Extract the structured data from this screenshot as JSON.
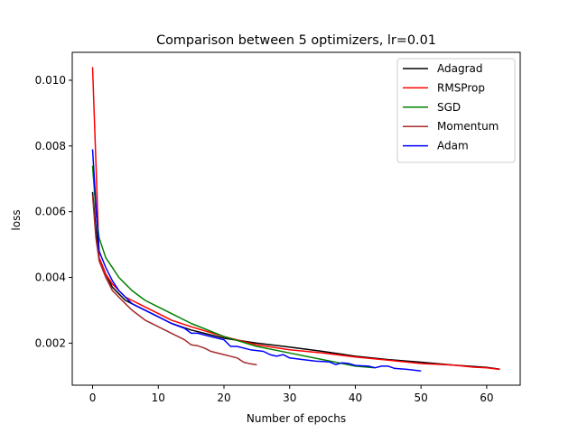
{
  "chart_data": {
    "type": "line",
    "title": "Comparison between 5 optimizers, lr=0.01",
    "xlabel": "Number of epochs",
    "ylabel": "loss",
    "xlim": [
      -3.1,
      65.1
    ],
    "ylim": [
      0.00072,
      0.01085
    ],
    "xticks": [
      0,
      10,
      20,
      30,
      40,
      50,
      60
    ],
    "yticks": [
      0.002,
      0.004,
      0.006,
      0.008,
      0.01
    ],
    "ytick_labels": [
      "0.002",
      "0.004",
      "0.006",
      "0.008",
      "0.010"
    ],
    "grid": false,
    "legend_position": "top-right",
    "series": [
      {
        "name": "Adagrad",
        "color": "#000000",
        "x": [
          0,
          0.5,
          1,
          2,
          3,
          4,
          5,
          6,
          8,
          10,
          12,
          15,
          20,
          25,
          30,
          35,
          40,
          45,
          50,
          55,
          60,
          62
        ],
        "y": [
          0.0066,
          0.0055,
          0.0046,
          0.0041,
          0.0037,
          0.0035,
          0.0033,
          0.0032,
          0.003,
          0.0028,
          0.0026,
          0.0024,
          0.00215,
          0.002,
          0.00188,
          0.00175,
          0.0016,
          0.0015,
          0.00142,
          0.00133,
          0.00126,
          0.00121
        ]
      },
      {
        "name": "RMSProp",
        "color": "#ff0000",
        "x": [
          0,
          0.5,
          1,
          2,
          3,
          4,
          5,
          6,
          8,
          10,
          12,
          15,
          20,
          25,
          30,
          35,
          40,
          45,
          50,
          55,
          58,
          60,
          62
        ],
        "y": [
          0.0104,
          0.0075,
          0.0046,
          0.0041,
          0.0038,
          0.0036,
          0.0034,
          0.0033,
          0.0031,
          0.0029,
          0.0027,
          0.0025,
          0.0022,
          0.00195,
          0.0018,
          0.0017,
          0.00158,
          0.00148,
          0.00138,
          0.00133,
          0.00127,
          0.00125,
          0.0012
        ]
      },
      {
        "name": "SGD",
        "color": "#008000",
        "x": [
          0,
          0.5,
          1,
          2,
          3,
          4,
          5,
          6,
          8,
          10,
          12,
          15,
          20,
          25,
          30,
          35,
          40,
          43
        ],
        "y": [
          0.0074,
          0.006,
          0.0052,
          0.0046,
          0.0043,
          0.004,
          0.0038,
          0.0036,
          0.0033,
          0.0031,
          0.0029,
          0.0026,
          0.0022,
          0.0019,
          0.0017,
          0.0015,
          0.0013,
          0.00125
        ]
      },
      {
        "name": "Momentum",
        "color": "#a52a2a",
        "x": [
          0,
          0.5,
          1,
          2,
          3,
          4,
          5,
          6,
          8,
          10,
          12,
          13,
          14,
          15,
          16,
          17,
          18,
          20,
          22,
          23,
          24,
          25
        ],
        "y": [
          0.0065,
          0.0052,
          0.0045,
          0.004,
          0.0036,
          0.0034,
          0.0032,
          0.003,
          0.0027,
          0.0025,
          0.0023,
          0.0022,
          0.0021,
          0.00195,
          0.00192,
          0.00185,
          0.00175,
          0.00165,
          0.00155,
          0.00142,
          0.00137,
          0.00134
        ]
      },
      {
        "name": "Adam",
        "color": "#0000ff",
        "x": [
          0,
          0.5,
          1,
          2,
          3,
          4,
          5,
          6,
          8,
          10,
          12,
          14,
          15,
          16,
          18,
          20,
          21,
          22,
          24,
          26,
          27,
          28,
          29,
          30,
          32,
          34,
          36,
          37,
          38,
          39,
          40,
          42,
          43,
          44,
          45,
          46,
          48,
          50
        ],
        "y": [
          0.0079,
          0.0062,
          0.0048,
          0.0043,
          0.0039,
          0.0036,
          0.0034,
          0.0032,
          0.003,
          0.0028,
          0.0026,
          0.00245,
          0.0023,
          0.0023,
          0.0022,
          0.0021,
          0.0019,
          0.0019,
          0.0018,
          0.00175,
          0.00165,
          0.0016,
          0.00165,
          0.00155,
          0.0015,
          0.00145,
          0.00143,
          0.00135,
          0.0014,
          0.00138,
          0.00132,
          0.0013,
          0.00125,
          0.0013,
          0.0013,
          0.00123,
          0.0012,
          0.00115
        ]
      }
    ]
  }
}
